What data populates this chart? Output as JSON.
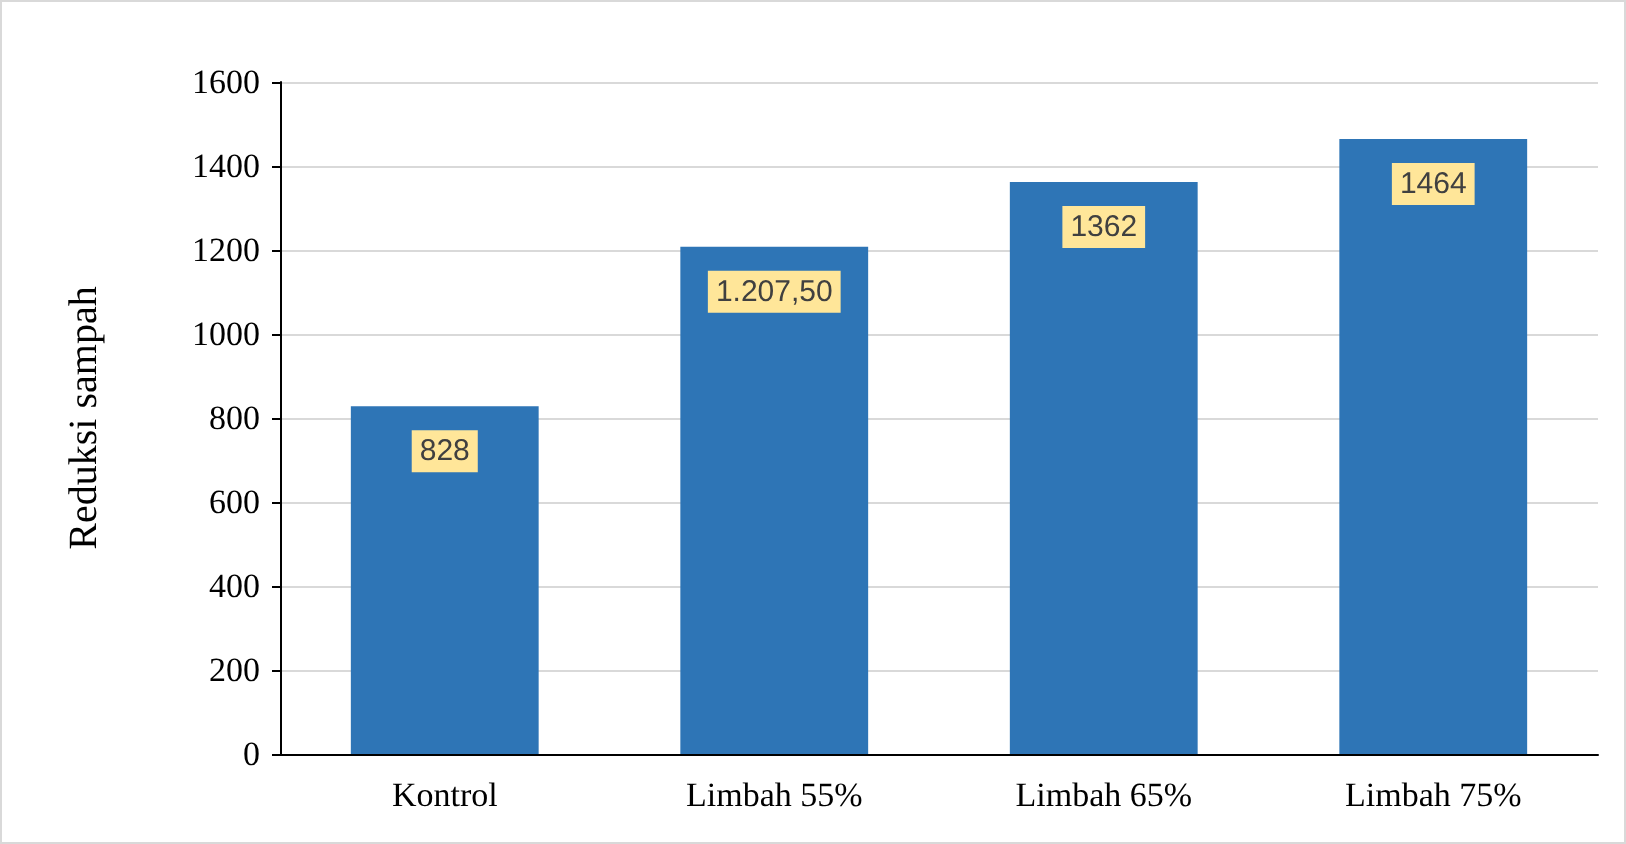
{
  "chart_data": {
    "type": "bar",
    "ylabel": "Reduksi sampah",
    "categories": [
      "Kontrol",
      "Limbah 55%",
      "Limbah 65%",
      "Limbah 75%"
    ],
    "values": [
      828,
      1207.5,
      1362,
      1464
    ],
    "value_labels": [
      "828",
      "1.207,50",
      "1362",
      "1464"
    ],
    "color": "#2e75b6",
    "ylim": [
      0,
      1600
    ],
    "yticks": [
      0,
      200,
      400,
      600,
      800,
      1000,
      1200,
      1400,
      1600
    ],
    "grid": "y"
  }
}
